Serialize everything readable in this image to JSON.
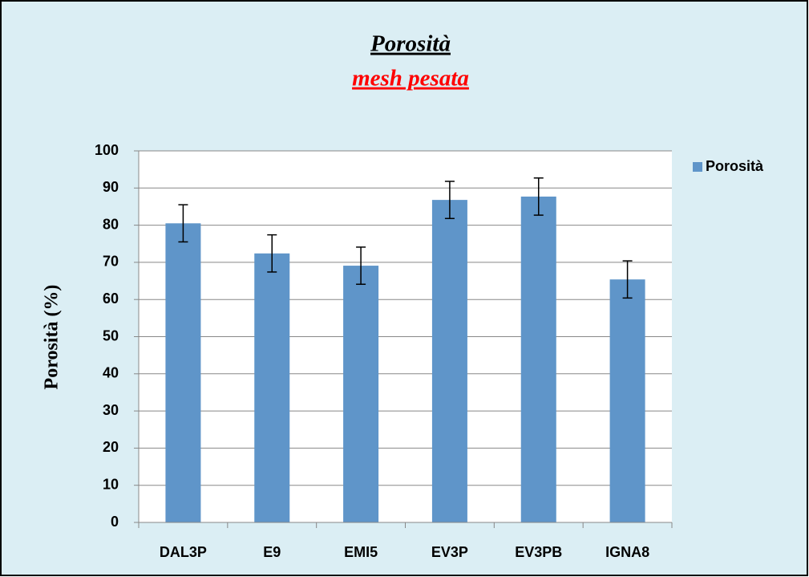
{
  "chart_data": {
    "type": "bar",
    "title": "Porosità",
    "subtitle": "mesh pesata",
    "y_label": "Porosità (%)",
    "categories": [
      "DAL3P",
      "E9",
      "EMI5",
      "EV3P",
      "EV3PB",
      "IGNA8"
    ],
    "series": [
      {
        "name": "Porosità",
        "color": "#5f95c9",
        "values": [
          80.5,
          72.4,
          69.1,
          86.8,
          87.7,
          65.4
        ],
        "errors": [
          5,
          5,
          5,
          5,
          5,
          5
        ]
      }
    ],
    "ylim": [
      0,
      100
    ],
    "yticks": [
      0,
      10,
      20,
      30,
      40,
      50,
      60,
      70,
      80,
      90,
      100
    ],
    "grid": true,
    "legend": "right"
  }
}
